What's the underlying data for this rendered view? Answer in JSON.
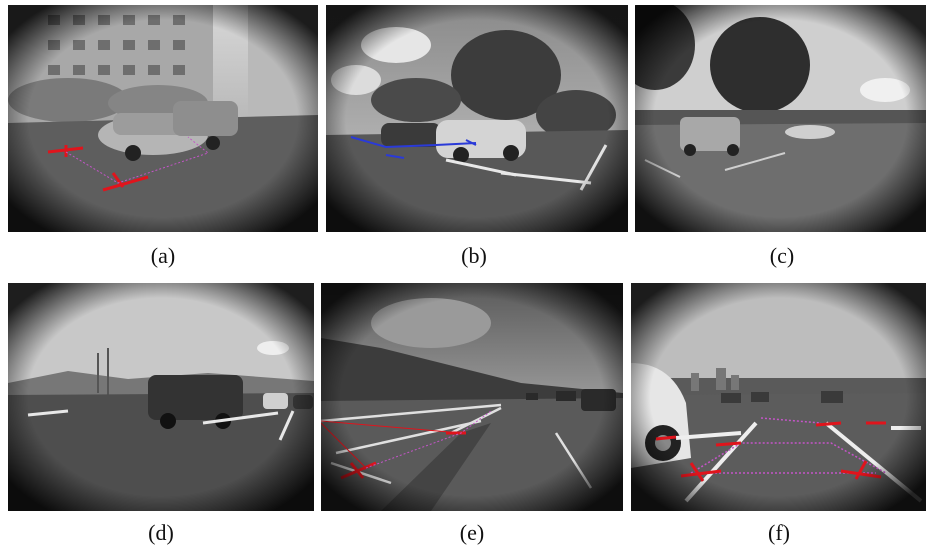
{
  "figure": {
    "panels": [
      {
        "id": "a",
        "caption": "(a)",
        "scene": "parking lot with apartment buildings, sedan and minivan, red parking-slot markers"
      },
      {
        "id": "b",
        "caption": "(b)",
        "scene": "parking lot under trees, sedans, blue slot markers"
      },
      {
        "id": "c",
        "caption": "(c)",
        "scene": "open parking lot with trees, small car"
      },
      {
        "id": "d",
        "caption": "(d)",
        "scene": "open parking lot with minivan and white line markings"
      },
      {
        "id": "e",
        "caption": "(e)",
        "scene": "empty parking lot with hills, red slot markers"
      },
      {
        "id": "f",
        "caption": "(f)",
        "scene": "parking lot with parked car, red slot markers and magenta outline"
      }
    ],
    "marker_colors": {
      "red": "#e0141c",
      "blue": "#2a3ad8",
      "magenta": "#c455c8"
    }
  }
}
